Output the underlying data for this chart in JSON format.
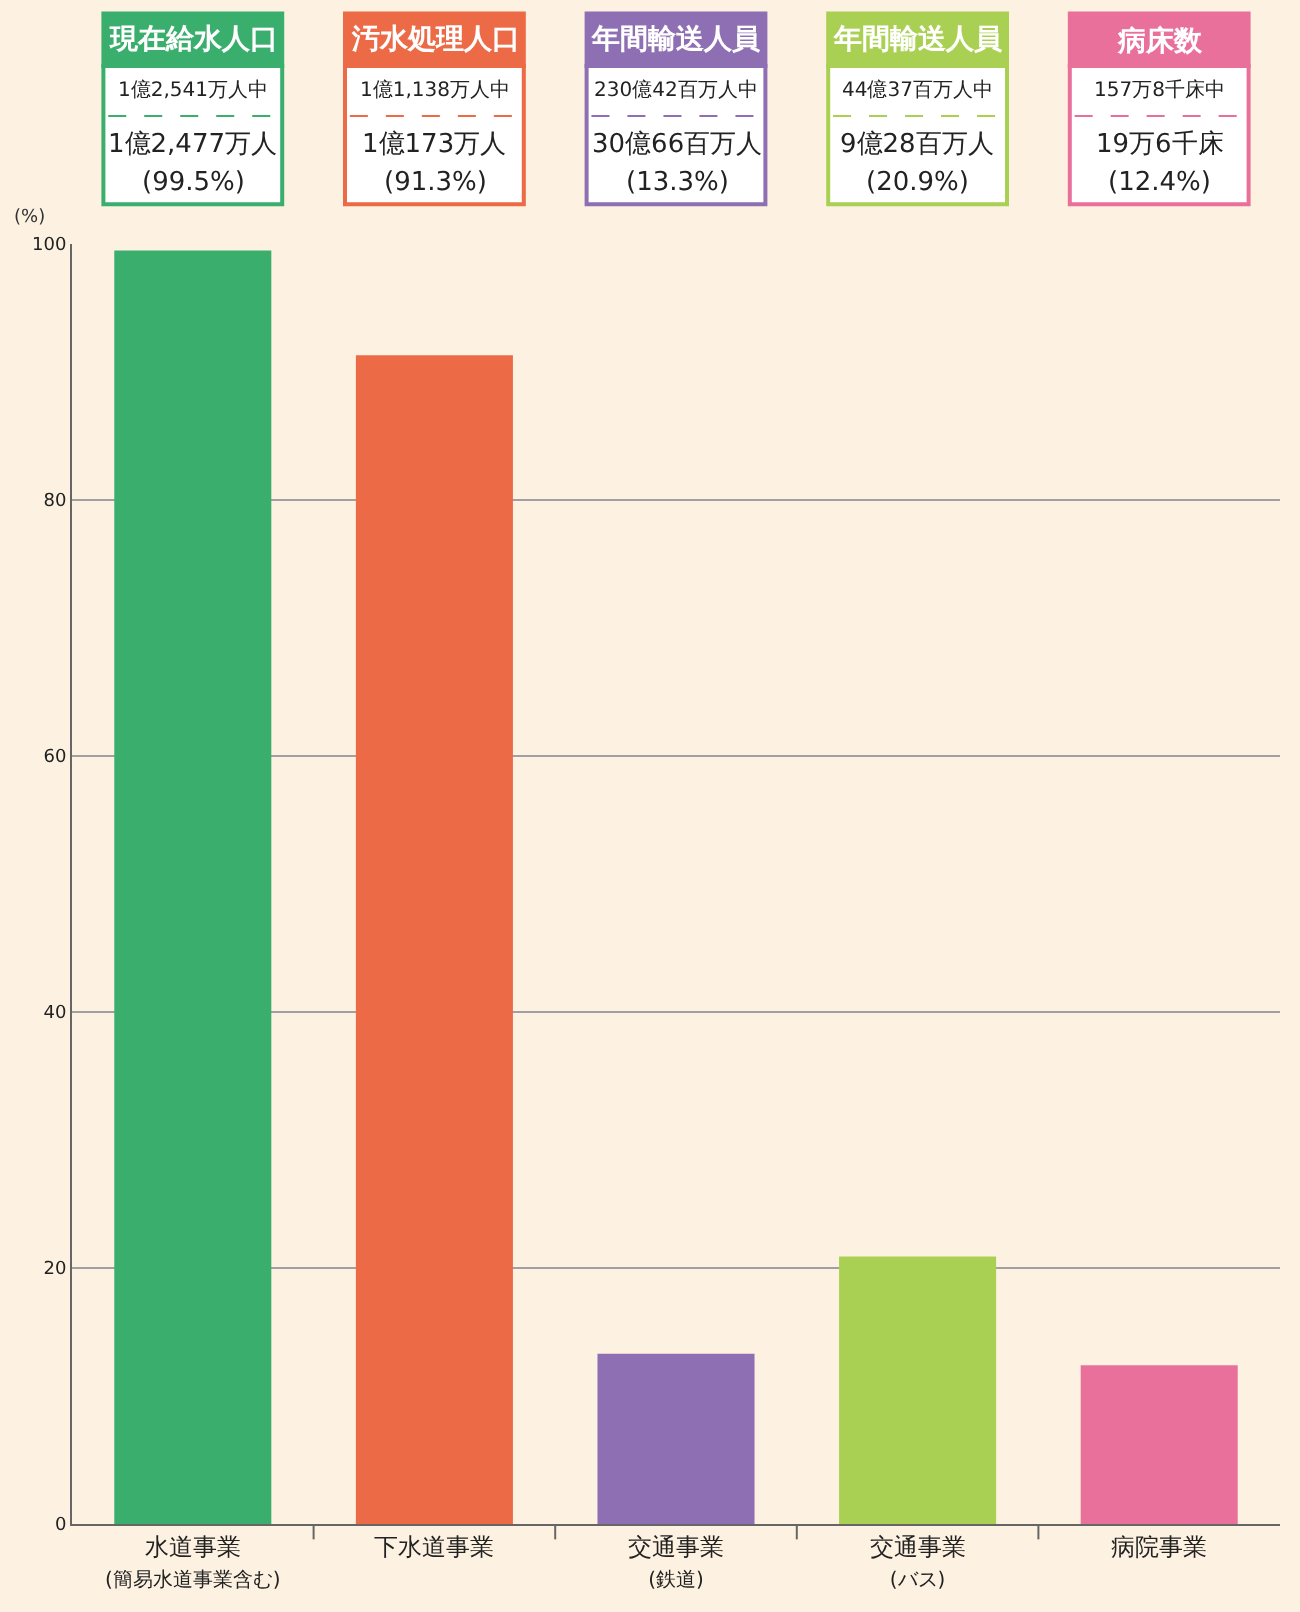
{
  "chart_data": {
    "type": "bar",
    "ylabel": "(%)",
    "categories": [
      "水道事業\n(簡易水道事業含む)",
      "下水道事業",
      "交通事業\n(鉄道)",
      "交通事業\n(バス)",
      "病院事業"
    ],
    "values": [
      99.5,
      91.3,
      13.3,
      20.9,
      12.4
    ],
    "colors": [
      "#3aae6c",
      "#ec6a45",
      "#8e6fb3",
      "#a9d052",
      "#e8709a"
    ],
    "value_labels": [
      "(99.5%)",
      "(91.3%)",
      "(13.3%)",
      "(20.9%)",
      "(12.4%)"
    ],
    "annotations": [
      "現在給水人口",
      "1億2,541万人中",
      "1億2,477万人",
      "汚水処理人口",
      "1億1,138万人中",
      "1億173万人",
      "年間輸送人員",
      "230億42百万人中",
      "30億66百万人",
      "年間輸送人員",
      "44億37百万人中",
      "9億28百万人",
      "病床数",
      "157万8千床中",
      "19万6千床"
    ],
    "ylim": [
      0,
      100
    ],
    "yticks": [
      0,
      20,
      40,
      60,
      80,
      100
    ],
    "grid": "y"
  }
}
